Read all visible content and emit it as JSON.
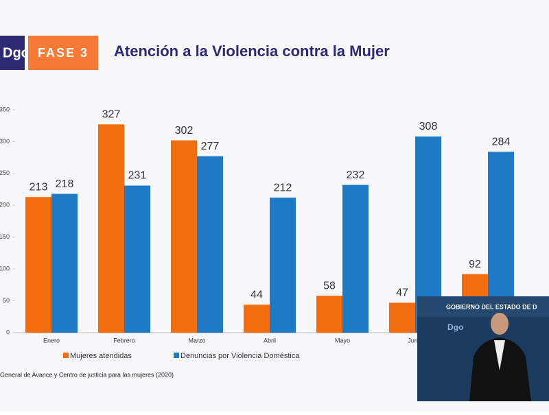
{
  "header": {
    "logo": "Dgo",
    "phase": "FASE 3",
    "title": "Atención a la Violencia contra la Mujer"
  },
  "chart_data": {
    "type": "bar",
    "categories": [
      "Enero",
      "Febrero",
      "Marzo",
      "Abril",
      "Mayo",
      "Junio",
      null
    ],
    "series": [
      {
        "name": "Mujeres atendidas",
        "color": "#f36c0e",
        "values": [
          213,
          327,
          302,
          44,
          58,
          47,
          92
        ]
      },
      {
        "name": "Denuncias por Violencia Doméstica",
        "color": "#1f7ac6",
        "values": [
          218,
          231,
          277,
          212,
          232,
          308,
          284
        ]
      }
    ],
    "ylim": [
      0,
      350
    ],
    "yticks": [
      0,
      50,
      100,
      150,
      200,
      250,
      300,
      350
    ],
    "legend": "bottom",
    "source": "General de Avance y Centro de justicia para las mujeres (2020)"
  },
  "overlay": {
    "banner": "GOBIERNO DEL ESTADO DE D",
    "logo": "Dgo"
  }
}
